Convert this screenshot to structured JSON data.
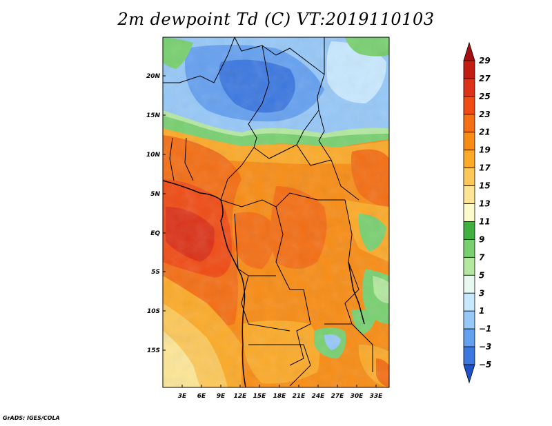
{
  "title": "2m dewpoint Td (C) VT:2019110103",
  "footer": "GrADS: IGES/COLA",
  "y_ticks": [
    "20N",
    "15N",
    "10N",
    "5N",
    "EQ",
    "5S",
    "10S",
    "15S"
  ],
  "x_ticks": [
    "3E",
    "6E",
    "9E",
    "12E",
    "15E",
    "18E",
    "21E",
    "24E",
    "27E",
    "30E",
    "33E"
  ],
  "colorbar": {
    "labels": [
      "29",
      "27",
      "25",
      "23",
      "21",
      "19",
      "17",
      "15",
      "13",
      "11",
      "9",
      "7",
      "5",
      "3",
      "1",
      "−1",
      "−3",
      "−5"
    ],
    "colors": [
      "#a50f0f",
      "#c41e14",
      "#dc3218",
      "#f04b14",
      "#f46e14",
      "#f88c14",
      "#fcaa28",
      "#fcc85a",
      "#fce696",
      "#fcfac8",
      "#40b040",
      "#78d070",
      "#b4e8a0",
      "#e8f8f0",
      "#c8e8ff",
      "#96c8f8",
      "#64a0f0",
      "#3c78e0",
      "#1e50c8"
    ]
  }
}
